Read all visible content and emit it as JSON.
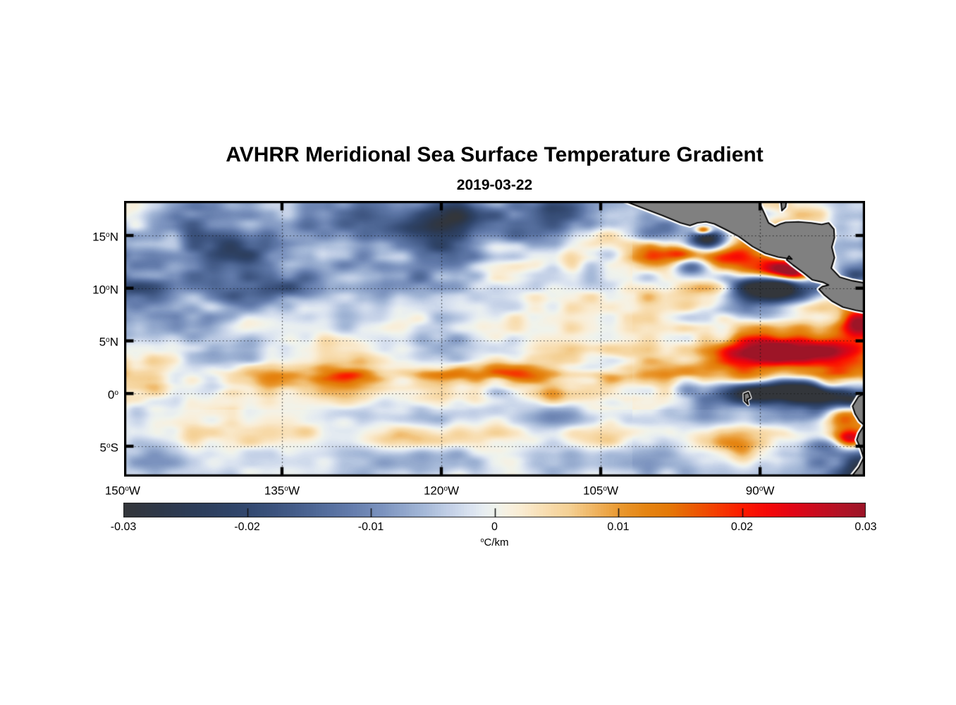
{
  "chart_data": {
    "type": "heatmap",
    "title": "AVHRR Meridional Sea Surface Temperature Gradient",
    "date": "2019-03-22",
    "lon_range": [
      -149.86,
      -80.12
    ],
    "lat_range": [
      -7.88,
      18.28
    ],
    "x_axis": {
      "ticks": [
        {
          "value": -150,
          "label": "150°W"
        },
        {
          "value": -135,
          "label": "135°W"
        },
        {
          "value": -120,
          "label": "120°W"
        },
        {
          "value": -105,
          "label": "105°W"
        },
        {
          "value": -90,
          "label": "90°W"
        }
      ]
    },
    "y_axis": {
      "ticks": [
        {
          "value": 15,
          "label": "15°N"
        },
        {
          "value": 10,
          "label": "10°N"
        },
        {
          "value": 5,
          "label": "5°N"
        },
        {
          "value": 0,
          "label": "0°"
        },
        {
          "value": -5,
          "label": "5°S"
        }
      ]
    },
    "grid_lons": [
      -135,
      -120,
      -105,
      -90
    ],
    "grid_lats": [
      15,
      10,
      5,
      0,
      -5
    ],
    "colorbar": {
      "min": -0.03,
      "max": 0.03,
      "unit_label": "°C/km",
      "ticks": [
        {
          "value": -0.03,
          "label": "-0.03"
        },
        {
          "value": -0.02,
          "label": "-0.02"
        },
        {
          "value": -0.01,
          "label": "-0.01"
        },
        {
          "value": 0,
          "label": "0"
        },
        {
          "value": 0.01,
          "label": "0.01"
        },
        {
          "value": 0.02,
          "label": "0.02"
        },
        {
          "value": 0.03,
          "label": "0.03"
        }
      ],
      "stops": [
        [
          -30,
          "#33363b"
        ],
        [
          -27,
          "#2d3749"
        ],
        [
          -24,
          "#2c3d5a"
        ],
        [
          -21,
          "#2f4469"
        ],
        [
          -18,
          "#3b527d"
        ],
        [
          -15,
          "#4c6593"
        ],
        [
          -12,
          "#6079a9"
        ],
        [
          -9,
          "#7e95c0"
        ],
        [
          -6,
          "#a2b6d6"
        ],
        [
          -4,
          "#bfcde5"
        ],
        [
          -2,
          "#dae3f0"
        ],
        [
          -1,
          "#e7edf1"
        ],
        [
          0,
          "#eff3ec"
        ],
        [
          1,
          "#f7f0e0"
        ],
        [
          2,
          "#f9ecd2"
        ],
        [
          4,
          "#f8ddb0"
        ],
        [
          6,
          "#f4cf92"
        ],
        [
          8,
          "#efb35f"
        ],
        [
          10,
          "#e9982f"
        ],
        [
          12,
          "#e58512"
        ],
        [
          14,
          "#e47806"
        ],
        [
          16,
          "#eb5a03"
        ],
        [
          18,
          "#f53a01"
        ],
        [
          20,
          "#fc1900"
        ],
        [
          22,
          "#f40707"
        ],
        [
          24,
          "#e10414"
        ],
        [
          26,
          "#c80b1e"
        ],
        [
          28,
          "#b01225"
        ],
        [
          30,
          "#9a1527"
        ]
      ]
    },
    "field": {
      "units": "0.001 °C/km",
      "lons": [
        -150,
        -145,
        -140,
        -135,
        -130,
        -125,
        -120,
        -115,
        -110,
        -105,
        -100,
        -95,
        -90,
        -85,
        -80
      ],
      "lats": [
        18,
        16,
        14,
        12,
        10,
        8,
        6,
        4,
        2,
        0,
        -2,
        -4,
        -6,
        -8
      ],
      "values": [
        [
          -3,
          -5,
          -8,
          -4,
          -7,
          -11,
          -13,
          -7,
          -10,
          -5,
          -2,
          0,
          -2,
          -4,
          -4
        ],
        [
          -5,
          -9,
          -6,
          -5,
          -9,
          -14,
          -15,
          -8,
          -12,
          -8,
          -4,
          2,
          0,
          -3,
          -5
        ],
        [
          -8,
          -4,
          -10,
          -7,
          -5,
          -10,
          -13,
          -5,
          -7,
          -3,
          3,
          -2,
          4,
          -2,
          -6
        ],
        [
          -6,
          -8,
          -12,
          -8,
          -10,
          -7,
          -10,
          -8,
          -4,
          2,
          7,
          -6,
          10,
          6,
          -10
        ],
        [
          -10,
          -6,
          -13,
          -10,
          -6,
          -8,
          -11,
          -6,
          -2,
          2,
          5,
          3,
          -14,
          -8,
          0
        ],
        [
          -4,
          -8,
          -6,
          -5,
          -6,
          -4,
          -8,
          -4,
          -2,
          0,
          2,
          -4,
          -10,
          4,
          10
        ],
        [
          -8,
          -4,
          -3,
          -6,
          -3,
          -4,
          -6,
          -2,
          -3,
          0,
          3,
          6,
          5,
          8,
          16
        ],
        [
          -2,
          -3,
          -4,
          -2,
          -2,
          -3,
          -4,
          -2,
          0,
          2,
          5,
          10,
          14,
          16,
          10
        ],
        [
          2,
          4,
          3,
          5,
          7,
          4,
          6,
          6,
          7,
          5,
          7,
          10,
          8,
          12,
          10
        ],
        [
          1,
          2,
          2,
          2,
          3,
          2,
          3,
          2,
          3,
          2,
          -2,
          -5,
          -10,
          -18,
          -10
        ],
        [
          -2,
          -1,
          -3,
          -2,
          -4,
          -3,
          -5,
          -4,
          -6,
          -4,
          -7,
          -5,
          -9,
          -6,
          2
        ],
        [
          2,
          3,
          2,
          3,
          2,
          4,
          2,
          3,
          2,
          4,
          2,
          5,
          6,
          3,
          8
        ],
        [
          -3,
          -5,
          -2,
          -4,
          -2,
          -3,
          -4,
          -2,
          -3,
          -2,
          -4,
          3,
          2,
          -7,
          -14
        ],
        [
          -2,
          -4,
          -3,
          -2,
          -3,
          -4,
          -2,
          -3,
          -4,
          -3,
          -5,
          -2,
          -5,
          -10,
          -18
        ]
      ]
    },
    "features": [
      [
        -95.3,
        15.5,
        0.55,
        0.3,
        30
      ],
      [
        -95.0,
        14.5,
        1.1,
        0.7,
        -26
      ],
      [
        -97.8,
        13.4,
        1.6,
        0.7,
        14
      ],
      [
        -96.6,
        12.1,
        1.0,
        0.6,
        -16
      ],
      [
        -93.6,
        12.6,
        1.5,
        0.8,
        16
      ],
      [
        -91.6,
        13.4,
        1.4,
        0.6,
        12
      ],
      [
        -88.6,
        11.9,
        2.0,
        0.75,
        28
      ],
      [
        -86.9,
        11.3,
        1.0,
        0.5,
        14
      ],
      [
        -88.3,
        10.1,
        2.4,
        0.85,
        -26
      ],
      [
        -81.2,
        11.2,
        1.3,
        0.7,
        -16
      ],
      [
        -80.8,
        6.6,
        1.1,
        0.8,
        22
      ],
      [
        -84.6,
        3.8,
        2.8,
        1.1,
        20
      ],
      [
        -89.3,
        4.3,
        2.3,
        0.95,
        14
      ],
      [
        -92.8,
        3.4,
        1.9,
        0.8,
        12
      ],
      [
        -83.3,
        0.8,
        1.1,
        0.55,
        20
      ],
      [
        -86.6,
        0.3,
        3.2,
        0.75,
        -26
      ],
      [
        -81.6,
        -0.7,
        1.5,
        0.5,
        -16
      ],
      [
        -91.6,
        -0.3,
        2.2,
        0.6,
        -10
      ],
      [
        -128.6,
        1.5,
        2.4,
        0.5,
        10
      ],
      [
        -119.8,
        1.6,
        2.0,
        0.5,
        9
      ],
      [
        -135.5,
        1.3,
        1.8,
        0.5,
        7
      ],
      [
        -111.5,
        1.8,
        2.0,
        0.5,
        9
      ],
      [
        -103.5,
        1.5,
        2.0,
        0.5,
        8
      ],
      [
        -82.2,
        -2.3,
        1.2,
        0.6,
        12
      ],
      [
        -81.7,
        -4.4,
        0.9,
        0.6,
        20
      ],
      [
        -92.0,
        -5.0,
        1.6,
        0.8,
        10
      ],
      [
        -83.5,
        -5.0,
        1.6,
        0.7,
        -12
      ],
      [
        -80.6,
        -6.9,
        1.3,
        0.9,
        -16
      ],
      [
        -118.5,
        16.8,
        2.6,
        0.9,
        -12
      ],
      [
        -122.5,
        15.3,
        2.2,
        0.8,
        -10
      ],
      [
        -109.5,
        17.3,
        2.0,
        0.8,
        -10
      ],
      [
        -140.0,
        13.8,
        2.4,
        0.8,
        -8
      ],
      [
        -147.5,
        10.2,
        2.0,
        0.7,
        -9
      ],
      [
        -133.5,
        9.8,
        2.2,
        0.7,
        -8
      ]
    ],
    "land": {
      "color": "#808080",
      "outline": "#000000",
      "fringe": "#ffffff",
      "polygons": {
        "central_america": [
          [
            -103.1,
            18.4
          ],
          [
            -90.2,
            18.4
          ],
          [
            -89.6,
            17.1
          ],
          [
            -89.2,
            16.2
          ],
          [
            -88.6,
            15.85
          ],
          [
            -88.1,
            16.1
          ],
          [
            -87.6,
            16.25
          ],
          [
            -86.4,
            16.3
          ],
          [
            -85.2,
            16.2
          ],
          [
            -84.2,
            16.05
          ],
          [
            -83.55,
            16.2
          ],
          [
            -83.05,
            15.6
          ],
          [
            -83.0,
            14.8
          ],
          [
            -83.25,
            13.9
          ],
          [
            -83.0,
            12.9
          ],
          [
            -83.3,
            11.9
          ],
          [
            -82.5,
            11.05
          ],
          [
            -81.3,
            10.7
          ],
          [
            -79.9,
            10.45
          ],
          [
            -79.9,
            7.7
          ],
          [
            -81.0,
            7.9
          ],
          [
            -82.2,
            8.2
          ],
          [
            -83.2,
            8.75
          ],
          [
            -84.0,
            9.4
          ],
          [
            -84.45,
            9.9
          ],
          [
            -84.15,
            10.15
          ],
          [
            -83.55,
            10.3
          ],
          [
            -84.05,
            10.55
          ],
          [
            -85.1,
            10.8
          ],
          [
            -85.9,
            11.45
          ],
          [
            -86.9,
            12.2
          ],
          [
            -87.5,
            12.7
          ],
          [
            -87.28,
            13.05
          ],
          [
            -87.0,
            12.75
          ],
          [
            -88.3,
            12.95
          ],
          [
            -89.5,
            13.3
          ],
          [
            -90.7,
            13.95
          ],
          [
            -92.0,
            14.9
          ],
          [
            -93.2,
            15.55
          ],
          [
            -94.3,
            16.1
          ],
          [
            -95.1,
            16.3
          ],
          [
            -95.9,
            16.2
          ],
          [
            -96.6,
            15.95
          ],
          [
            -97.5,
            16.2
          ],
          [
            -99.2,
            16.9
          ],
          [
            -101.3,
            17.7
          ]
        ],
        "belize": [
          [
            -88.05,
            18.4
          ],
          [
            -87.95,
            17.35
          ],
          [
            -87.6,
            17.7
          ],
          [
            -87.5,
            18.4
          ]
        ],
        "south_america": [
          [
            -79.9,
            0.15
          ],
          [
            -80.75,
            -0.3
          ],
          [
            -81.3,
            -1.2
          ],
          [
            -81.05,
            -1.95
          ],
          [
            -80.65,
            -2.6
          ],
          [
            -80.2,
            -3.0
          ],
          [
            -80.7,
            -3.8
          ],
          [
            -80.9,
            -4.4
          ],
          [
            -80.5,
            -5.3
          ],
          [
            -80.25,
            -6.1
          ],
          [
            -80.7,
            -7.0
          ],
          [
            -81.5,
            -8.0
          ],
          [
            -79.9,
            -8.0
          ]
        ],
        "galapagos": [
          [
            -91.5,
            -0.05
          ],
          [
            -91.1,
            0.1
          ],
          [
            -90.92,
            -0.4
          ],
          [
            -91.22,
            -0.55
          ],
          [
            -91.12,
            -1.05
          ],
          [
            -91.48,
            -0.7
          ]
        ]
      }
    }
  }
}
